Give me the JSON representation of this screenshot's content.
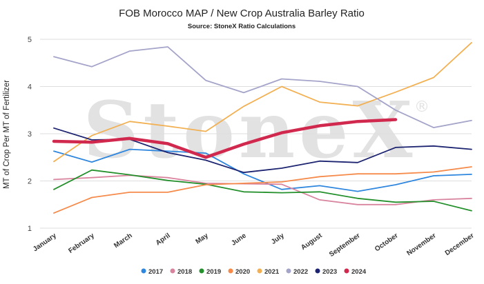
{
  "chart_data": {
    "type": "line",
    "title": "FOB Morocco MAP / New Crop Australia Barley Ratio",
    "subtitle": "Source: StoneX Ratio Calculations",
    "xlabel": "",
    "ylabel": "MT of Crop Per MT of Fertilizer",
    "ylim": [
      1,
      5
    ],
    "yticks": [
      1,
      2,
      3,
      4,
      5
    ],
    "grid": "horizontal",
    "legend_position": "bottom",
    "watermark": "StoneX",
    "categories": [
      "January",
      "February",
      "March",
      "April",
      "May",
      "June",
      "July",
      "August",
      "September",
      "October",
      "November",
      "December"
    ],
    "series": [
      {
        "name": "2017",
        "color": "#2e86de",
        "values": [
          2.63,
          2.4,
          2.67,
          2.63,
          2.59,
          2.15,
          1.82,
          1.9,
          1.78,
          1.92,
          2.11,
          2.14
        ]
      },
      {
        "name": "2018",
        "color": "#d9849e",
        "values": [
          2.03,
          2.07,
          2.12,
          2.07,
          1.95,
          1.94,
          1.93,
          1.6,
          1.5,
          1.5,
          1.6,
          1.63
        ]
      },
      {
        "name": "2019",
        "color": "#23902b",
        "values": [
          1.82,
          2.23,
          2.13,
          2.01,
          1.93,
          1.77,
          1.75,
          1.77,
          1.63,
          1.55,
          1.57,
          1.37
        ]
      },
      {
        "name": "2020",
        "color": "#f58a4a",
        "values": [
          1.32,
          1.65,
          1.76,
          1.76,
          1.92,
          1.95,
          1.98,
          2.09,
          2.15,
          2.15,
          2.19,
          2.3
        ]
      },
      {
        "name": "2021",
        "color": "#f2b052",
        "values": [
          2.41,
          2.96,
          3.26,
          3.16,
          3.05,
          3.58,
          4.0,
          3.67,
          3.59,
          3.88,
          4.19,
          4.93
        ]
      },
      {
        "name": "2022",
        "color": "#a4a3c9",
        "values": [
          4.63,
          4.42,
          4.75,
          4.84,
          4.13,
          3.87,
          4.16,
          4.11,
          4.0,
          3.5,
          3.13,
          3.28
        ]
      },
      {
        "name": "2023",
        "color": "#1c2370",
        "values": [
          3.12,
          2.87,
          2.88,
          2.6,
          2.44,
          2.18,
          2.27,
          2.42,
          2.39,
          2.71,
          2.74,
          2.67
        ]
      },
      {
        "name": "2024",
        "color": "#d1284e",
        "values": [
          2.84,
          2.82,
          2.9,
          2.79,
          2.5,
          2.78,
          3.02,
          3.17,
          3.26,
          3.3,
          null,
          null
        ]
      }
    ]
  }
}
